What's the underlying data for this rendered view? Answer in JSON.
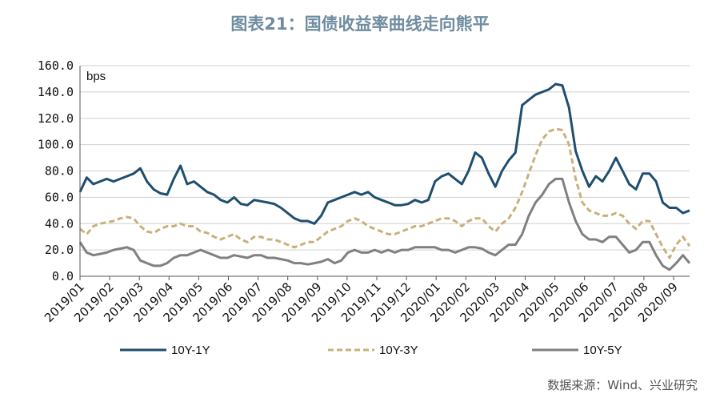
{
  "page": {
    "title": "图表21：国债收益率曲线走向熊平",
    "source": "数据来源：Wind、兴业研究"
  },
  "chart_data": {
    "type": "line",
    "title": "图表21：国债收益率曲线走向熊平",
    "ylabel": "bps",
    "ylim": [
      0,
      160
    ],
    "yticks": [
      "0.0",
      "20.0",
      "40.0",
      "60.0",
      "80.0",
      "100.0",
      "120.0",
      "140.0",
      "160.0"
    ],
    "x_ticks": [
      "2019/01",
      "2019/02",
      "2019/03",
      "2019/04",
      "2019/05",
      "2019/06",
      "2019/07",
      "2019/08",
      "2019/09",
      "2019/10",
      "2019/11",
      "2019/12",
      "2020/01",
      "2020/02",
      "2020/03",
      "2020/04",
      "2020/05",
      "2020/06",
      "2020/07",
      "2020/08",
      "2020/09"
    ],
    "grid": true,
    "legend_position": "bottom",
    "x": [
      "2019/01/02",
      "2019/01/09",
      "2019/01/16",
      "2019/01/23",
      "2019/01/30",
      "2019/02/06",
      "2019/02/13",
      "2019/02/20",
      "2019/02/27",
      "2019/03/06",
      "2019/03/13",
      "2019/03/20",
      "2019/03/27",
      "2019/04/03",
      "2019/04/10",
      "2019/04/17",
      "2019/04/24",
      "2019/05/01",
      "2019/05/08",
      "2019/05/15",
      "2019/05/22",
      "2019/05/29",
      "2019/06/05",
      "2019/06/12",
      "2019/06/19",
      "2019/06/26",
      "2019/07/03",
      "2019/07/10",
      "2019/07/17",
      "2019/07/24",
      "2019/07/31",
      "2019/08/07",
      "2019/08/14",
      "2019/08/21",
      "2019/08/28",
      "2019/09/04",
      "2019/09/11",
      "2019/09/18",
      "2019/09/25",
      "2019/10/02",
      "2019/10/09",
      "2019/10/16",
      "2019/10/23",
      "2019/10/30",
      "2019/11/06",
      "2019/11/13",
      "2019/11/20",
      "2019/11/27",
      "2019/12/04",
      "2019/12/11",
      "2019/12/18",
      "2019/12/25",
      "2020/01/01",
      "2020/01/08",
      "2020/01/15",
      "2020/01/22",
      "2020/01/29",
      "2020/02/05",
      "2020/02/12",
      "2020/02/19",
      "2020/02/26",
      "2020/03/04",
      "2020/03/11",
      "2020/03/18",
      "2020/03/25",
      "2020/04/01",
      "2020/04/08",
      "2020/04/15",
      "2020/04/22",
      "2020/04/29",
      "2020/05/06",
      "2020/05/13",
      "2020/05/20",
      "2020/05/27",
      "2020/06/03",
      "2020/06/10",
      "2020/06/17",
      "2020/06/24",
      "2020/07/01",
      "2020/07/08",
      "2020/07/15",
      "2020/07/22",
      "2020/07/29",
      "2020/08/05",
      "2020/08/12",
      "2020/08/19",
      "2020/08/26",
      "2020/09/02",
      "2020/09/09",
      "2020/09/16",
      "2020/09/23",
      "2020/09/30"
    ],
    "series": [
      {
        "name": "10Y-1Y",
        "color": "#1f4e6e",
        "style": "solid",
        "values": [
          64,
          75,
          70,
          72,
          74,
          72,
          74,
          76,
          78,
          82,
          72,
          66,
          63,
          62,
          74,
          84,
          70,
          72,
          68,
          64,
          62,
          58,
          56,
          60,
          55,
          54,
          58,
          57,
          56,
          55,
          52,
          48,
          44,
          42,
          42,
          40,
          46,
          56,
          58,
          60,
          62,
          64,
          62,
          64,
          60,
          58,
          56,
          54,
          54,
          55,
          58,
          56,
          58,
          72,
          76,
          78,
          74,
          70,
          80,
          94,
          90,
          78,
          68,
          80,
          88,
          94,
          130,
          134,
          138,
          140,
          142,
          146,
          145,
          128,
          95,
          80,
          68,
          76,
          72,
          80,
          90,
          80,
          70,
          66,
          78,
          78,
          72,
          56,
          52,
          52,
          48,
          50
        ]
      },
      {
        "name": "10Y-3Y",
        "color": "#c9b07a",
        "style": "dashed",
        "values": [
          36,
          32,
          38,
          40,
          41,
          42,
          44,
          45,
          44,
          38,
          34,
          33,
          36,
          38,
          38,
          40,
          38,
          38,
          34,
          33,
          30,
          28,
          30,
          32,
          28,
          26,
          30,
          30,
          28,
          28,
          26,
          24,
          22,
          24,
          26,
          26,
          30,
          34,
          36,
          38,
          42,
          44,
          42,
          38,
          36,
          34,
          32,
          32,
          34,
          36,
          38,
          38,
          40,
          42,
          44,
          44,
          42,
          38,
          42,
          44,
          44,
          38,
          34,
          40,
          44,
          52,
          64,
          78,
          92,
          104,
          110,
          112,
          111,
          100,
          74,
          56,
          50,
          48,
          46,
          46,
          48,
          46,
          40,
          36,
          42,
          42,
          32,
          22,
          14,
          24,
          30,
          23
        ]
      },
      {
        "name": "10Y-5Y",
        "color": "#808080",
        "style": "solid",
        "values": [
          26,
          18,
          16,
          17,
          18,
          20,
          21,
          22,
          20,
          12,
          10,
          8,
          8,
          10,
          14,
          16,
          16,
          18,
          20,
          18,
          16,
          14,
          14,
          16,
          15,
          14,
          16,
          16,
          14,
          14,
          13,
          12,
          10,
          10,
          9,
          10,
          11,
          13,
          10,
          12,
          18,
          20,
          18,
          18,
          20,
          18,
          20,
          18,
          20,
          20,
          22,
          22,
          22,
          22,
          20,
          20,
          18,
          20,
          22,
          22,
          21,
          18,
          16,
          20,
          24,
          24,
          32,
          46,
          56,
          62,
          70,
          74,
          74,
          56,
          42,
          32,
          28,
          28,
          26,
          30,
          30,
          24,
          18,
          20,
          26,
          26,
          16,
          8,
          5,
          10,
          16,
          10
        ]
      }
    ]
  }
}
